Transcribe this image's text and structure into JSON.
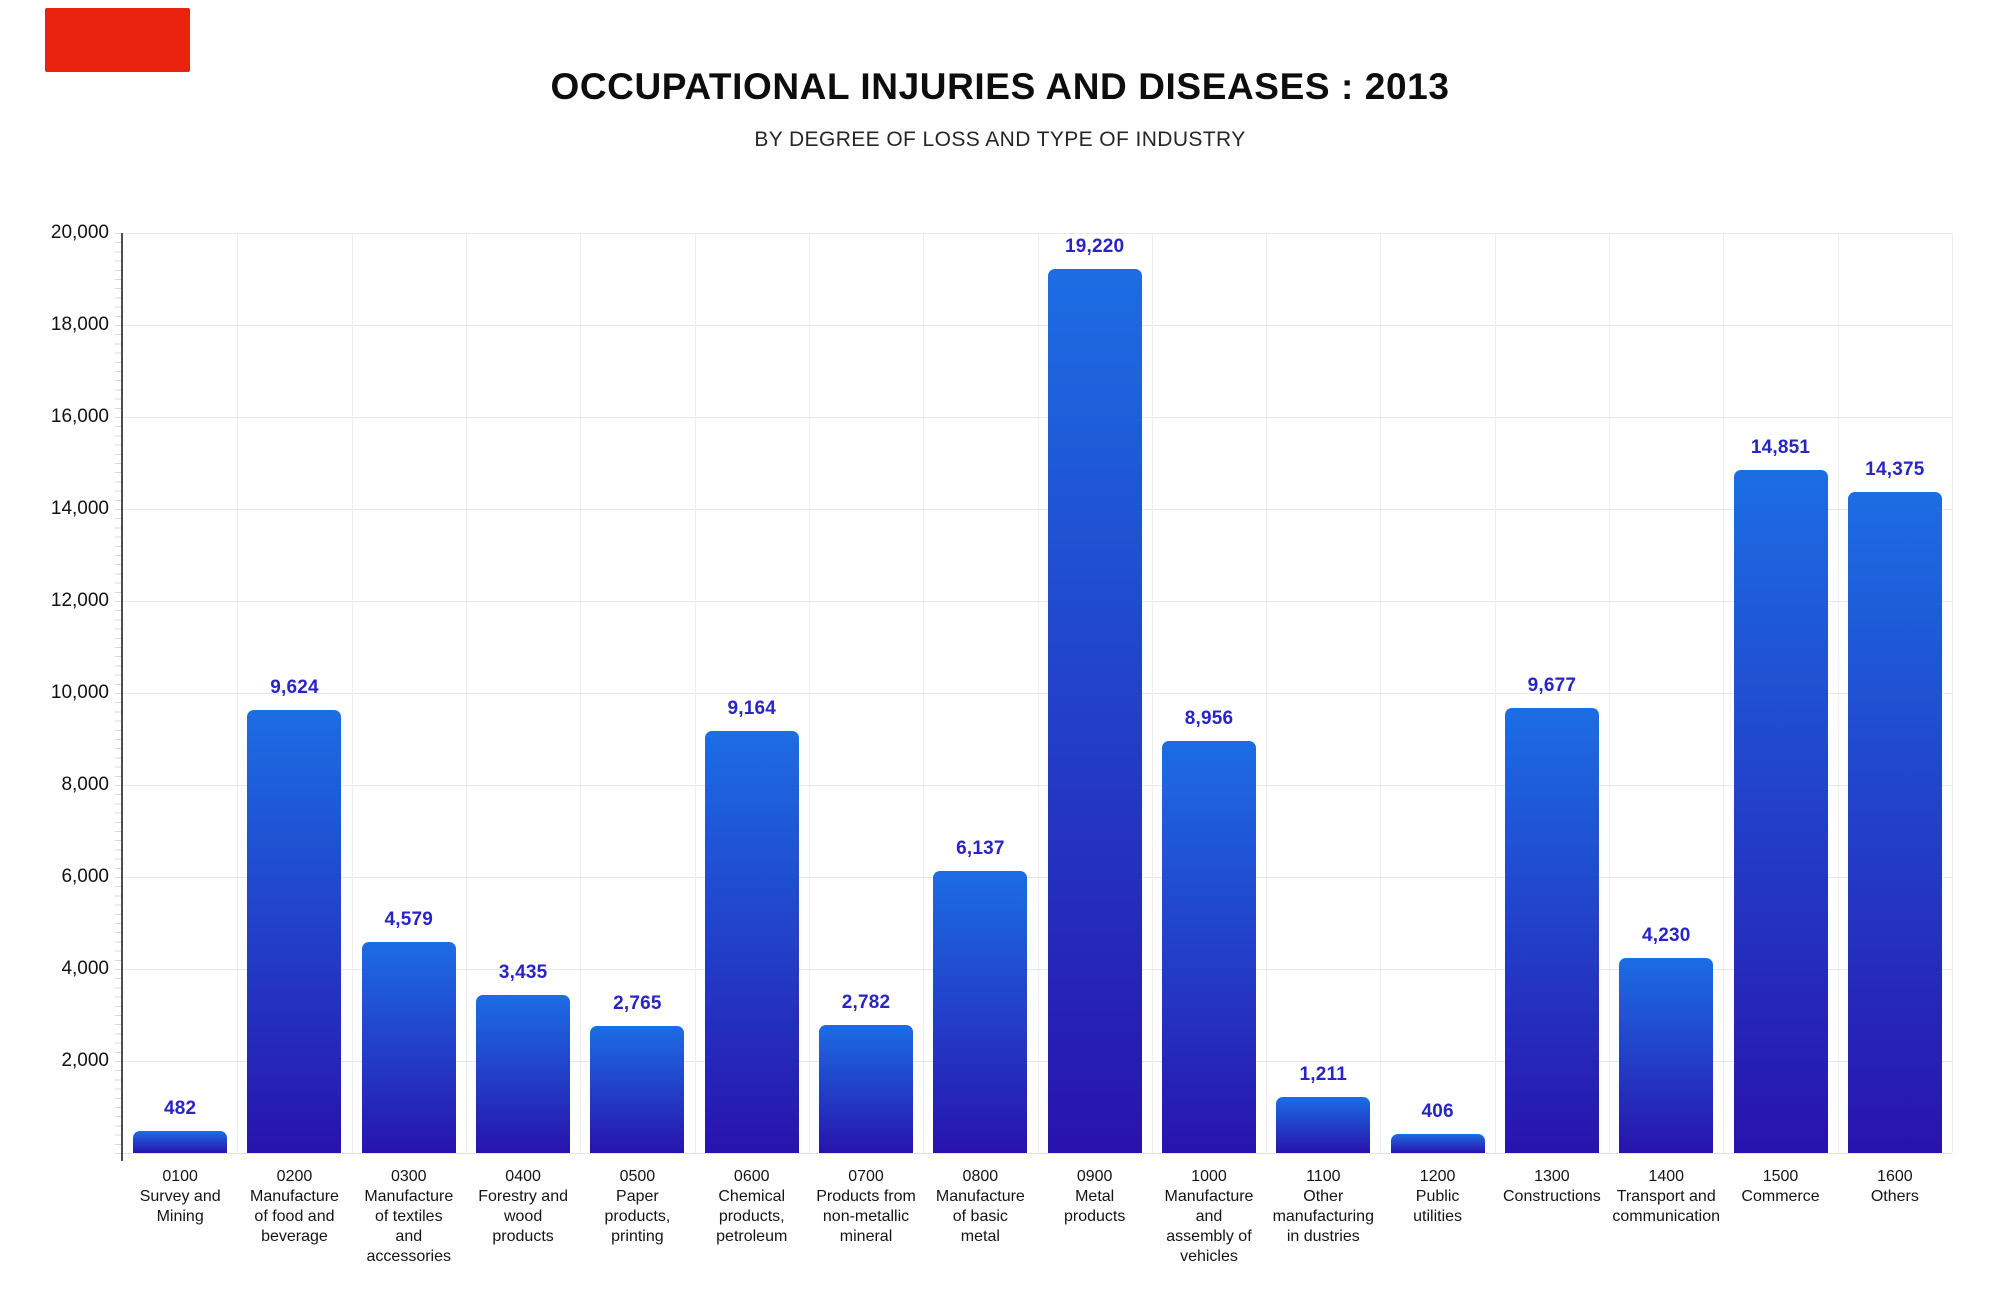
{
  "page": {
    "title": "OCCUPATIONAL INJURIES AND DISEASES : 2013",
    "subtitle": "BY DEGREE OF LOSS AND TYPE OF INDUSTRY"
  },
  "decor": {
    "corner_block_color": "#e9230e"
  },
  "colors": {
    "bar_gradient_top": "#1c6de3",
    "bar_gradient_bottom": "#2813ac",
    "value_label": "#2824c6",
    "grid_horizontal": "#e8e8e8",
    "grid_vertical": "#eeeeee",
    "axis": "#4d4d4d",
    "x_label": "#141414",
    "y_label": "#111111"
  },
  "chart_data": {
    "type": "bar",
    "title": "OCCUPATIONAL INJURIES AND DISEASES : 2013",
    "subtitle": "BY DEGREE OF LOSS AND TYPE OF INDUSTRY",
    "xlabel": "",
    "ylabel": "",
    "ylim": [
      0,
      20000
    ],
    "ytick_step": 2000,
    "ytick_labels": [
      "2,000",
      "4,000",
      "6,000",
      "8,000",
      "10,000",
      "12,000",
      "14,000",
      "16,000",
      "18,000",
      "20,000"
    ],
    "grid": true,
    "legend": false,
    "value_labels_shown": true,
    "categories": [
      {
        "code": "0100",
        "label": "Survey and Mining",
        "label_lines": [
          "0100",
          "Survey and",
          "Mining"
        ]
      },
      {
        "code": "0200",
        "label": "Manufacture of food and beverage",
        "label_lines": [
          "0200",
          "Manufacture",
          "of food and",
          "beverage"
        ]
      },
      {
        "code": "0300",
        "label": "Manufacture of textiles and accessories",
        "label_lines": [
          "0300",
          "Manufacture",
          "of textiles",
          "and",
          "accessories"
        ]
      },
      {
        "code": "0400",
        "label": "Forestry and wood products",
        "label_lines": [
          "0400",
          "Forestry and",
          "wood",
          "products"
        ]
      },
      {
        "code": "0500",
        "label": "Paper products, printing",
        "label_lines": [
          "0500",
          "Paper",
          "products,",
          "printing"
        ]
      },
      {
        "code": "0600",
        "label": "Chemical products, petroleum",
        "label_lines": [
          "0600",
          "Chemical",
          "products,",
          "petroleum"
        ]
      },
      {
        "code": "0700",
        "label": "Products from non-metallic mineral",
        "label_lines": [
          "0700",
          "Products from",
          "non-metallic",
          "mineral"
        ]
      },
      {
        "code": "0800",
        "label": "Manufacture of basic metal",
        "label_lines": [
          "0800",
          "Manufacture",
          "of basic",
          "metal"
        ]
      },
      {
        "code": "0900",
        "label": "Metal products",
        "label_lines": [
          "0900",
          "Metal",
          "products"
        ]
      },
      {
        "code": "1000",
        "label": "Manufacture and assembly of vehicles",
        "label_lines": [
          "1000",
          "Manufacture",
          "and",
          "assembly of",
          "vehicles"
        ]
      },
      {
        "code": "1100",
        "label": "Other manufacturing in dustries",
        "label_lines": [
          "1100",
          "Other",
          "manufacturing",
          "in dustries"
        ]
      },
      {
        "code": "1200",
        "label": "Public utilities",
        "label_lines": [
          "1200",
          "Public",
          "utilities"
        ]
      },
      {
        "code": "1300",
        "label": "Constructions",
        "label_lines": [
          "1300",
          "Constructions"
        ]
      },
      {
        "code": "1400",
        "label": "Transport and communication",
        "label_lines": [
          "1400",
          "Transport and",
          "communication"
        ]
      },
      {
        "code": "1500",
        "label": "Commerce",
        "label_lines": [
          "1500",
          "Commerce"
        ]
      },
      {
        "code": "1600",
        "label": "Others",
        "label_lines": [
          "1600",
          "Others"
        ]
      }
    ],
    "values": [
      482,
      9624,
      4579,
      3435,
      2765,
      9164,
      2782,
      6137,
      19220,
      8956,
      1211,
      406,
      9677,
      4230,
      14851,
      14375
    ],
    "value_labels": [
      "482",
      "9,624",
      "4,579",
      "3,435",
      "2,765",
      "9,164",
      "2,782",
      "6,137",
      "19,220",
      "8,956",
      "1,211",
      "406",
      "9,677",
      "4,230",
      "14,851",
      "14,375"
    ]
  }
}
